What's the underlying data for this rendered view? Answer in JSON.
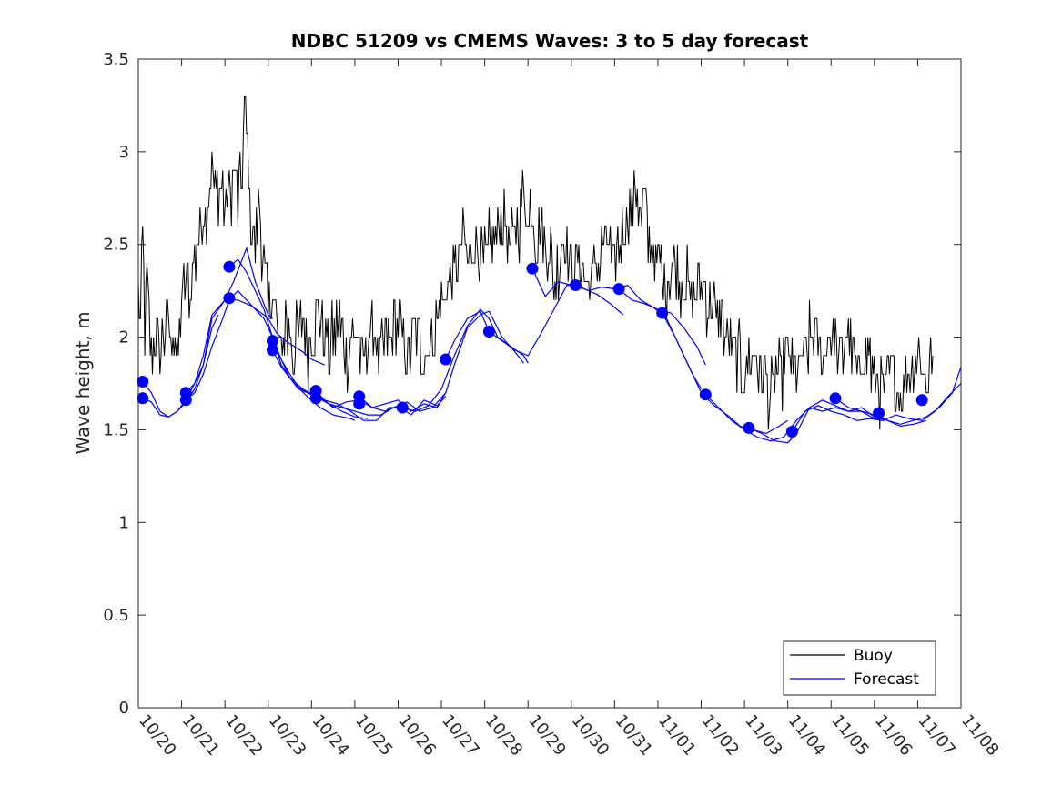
{
  "chart_data": {
    "type": "line",
    "title": "NDBC 51209 vs CMEMS Waves: 3 to 5 day forecast",
    "xlabel": "",
    "ylabel": "Wave height, m",
    "xlim": [
      0,
      19
    ],
    "ylim": [
      0,
      3.5
    ],
    "yticks": [
      0,
      0.5,
      1,
      1.5,
      2,
      2.5,
      3,
      3.5
    ],
    "ytick_labels": [
      "0",
      "0.5",
      "1",
      "1.5",
      "2",
      "2.5",
      "3",
      "3.5"
    ],
    "xticks": [
      0,
      1,
      2,
      3,
      4,
      5,
      6,
      7,
      8,
      9,
      10,
      11,
      12,
      13,
      14,
      15,
      16,
      17,
      18,
      19
    ],
    "xtick_labels": [
      "10/20",
      "10/21",
      "10/22",
      "10/23",
      "10/24",
      "10/25",
      "10/26",
      "10/27",
      "10/28",
      "10/29",
      "10/30",
      "10/31",
      "11/01",
      "11/02",
      "11/03",
      "11/04",
      "11/05",
      "11/06",
      "11/07",
      "11/08"
    ],
    "legend": {
      "position": "bottom-right",
      "entries": [
        {
          "label": "Buoy",
          "color": "#000000"
        },
        {
          "label": "Forecast",
          "color": "#0000ff"
        }
      ]
    },
    "colors": {
      "buoy": "#000000",
      "forecast": "#0000ff"
    },
    "series": [
      {
        "name": "Buoy",
        "x": [
          0,
          0.05,
          0.1,
          0.15,
          0.2,
          0.3,
          0.4,
          0.5,
          0.6,
          0.7,
          0.75,
          0.8,
          0.9,
          1.0,
          1.1,
          1.2,
          1.3,
          1.4,
          1.5,
          1.55,
          1.6,
          1.7,
          1.8,
          1.9,
          2.0,
          2.1,
          2.2,
          2.3,
          2.35,
          2.4,
          2.45,
          2.5,
          2.6,
          2.7,
          2.8,
          2.9,
          3.0,
          3.1,
          3.2,
          3.3,
          3.4,
          3.5,
          3.6,
          3.7,
          3.8,
          3.9,
          4.0,
          4.2,
          4.4,
          4.5,
          4.6,
          4.8,
          5.0,
          5.2,
          5.4,
          5.6,
          5.8,
          6.0,
          6.2,
          6.4,
          6.6,
          6.8,
          7.0,
          7.2,
          7.4,
          7.5,
          7.6,
          7.8,
          8.0,
          8.2,
          8.4,
          8.6,
          8.8,
          8.9,
          9.0,
          9.1,
          9.2,
          9.3,
          9.4,
          9.5,
          9.6,
          9.8,
          10.0,
          10.2,
          10.4,
          10.6,
          10.8,
          11.0,
          11.2,
          11.4,
          11.5,
          11.6,
          11.7,
          11.8,
          12.0,
          12.2,
          12.4,
          12.6,
          12.8,
          13.0,
          13.2,
          13.4,
          13.6,
          13.8,
          14.0,
          14.2,
          14.4,
          14.6,
          14.8,
          15.0,
          15.2,
          15.4,
          15.6,
          15.8,
          16.0,
          16.2,
          16.4,
          16.6,
          16.8,
          17.0,
          17.2,
          17.4,
          17.6,
          17.8,
          18.0,
          18.2,
          18.35
        ],
        "y": [
          2.3,
          2.1,
          2.5,
          2.0,
          2.3,
          1.9,
          2.0,
          1.9,
          2.0,
          2.1,
          1.9,
          2.1,
          1.8,
          2.2,
          2.3,
          2.2,
          2.4,
          2.5,
          2.7,
          2.6,
          2.8,
          2.9,
          2.8,
          2.8,
          2.7,
          2.8,
          2.9,
          2.7,
          2.8,
          2.9,
          3.2,
          3.1,
          2.6,
          2.5,
          2.7,
          2.4,
          2.1,
          2.3,
          2.0,
          1.9,
          2.1,
          2.0,
          1.9,
          2.0,
          2.1,
          1.9,
          2.0,
          2.1,
          1.9,
          2.0,
          2.1,
          1.9,
          2.0,
          1.9,
          2.0,
          1.9,
          2.0,
          2.1,
          1.9,
          2.0,
          1.9,
          2.0,
          2.2,
          2.3,
          2.4,
          2.5,
          2.4,
          2.5,
          2.4,
          2.5,
          2.6,
          2.5,
          2.6,
          2.8,
          2.6,
          2.7,
          2.5,
          2.6,
          2.4,
          2.5,
          2.3,
          2.5,
          2.4,
          2.4,
          2.3,
          2.4,
          2.5,
          2.4,
          2.6,
          2.7,
          2.8,
          2.6,
          2.7,
          2.5,
          2.4,
          2.3,
          2.4,
          2.3,
          2.2,
          2.3,
          2.2,
          2.1,
          2.0,
          1.9,
          1.8,
          1.9,
          1.8,
          1.7,
          1.8,
          1.9,
          1.8,
          1.9,
          2.0,
          1.9,
          2.0,
          1.9,
          2.0,
          1.8,
          1.9,
          1.8,
          1.7,
          1.8,
          1.7,
          1.8,
          1.9,
          1.8,
          1.9
        ]
      },
      {
        "name": "Forecast",
        "segments": [
          {
            "x": [
              0.1,
              0.3,
              0.5,
              0.7,
              0.9,
              1.1,
              1.3,
              1.5,
              1.7,
              2.0,
              2.2,
              2.5,
              2.7,
              3.0,
              3.1
            ],
            "y": [
              1.76,
              1.7,
              1.6,
              1.57,
              1.6,
              1.65,
              1.72,
              1.85,
              2.1,
              2.2,
              2.3,
              2.48,
              2.3,
              2.12,
              2.1
            ]
          },
          {
            "x": [
              0.1,
              0.3,
              0.5,
              0.7,
              0.9,
              1.1,
              1.3,
              1.5,
              1.7,
              1.85
            ],
            "y": [
              1.67,
              1.65,
              1.58,
              1.57,
              1.6,
              1.66,
              1.75,
              1.85,
              2.05,
              2.12
            ]
          },
          {
            "x": [
              1.1,
              1.3,
              1.5,
              1.7,
              2.0,
              2.3,
              2.6,
              2.9,
              3.0,
              3.2,
              3.4,
              3.6,
              3.8,
              4.0,
              4.3
            ],
            "y": [
              1.7,
              1.75,
              1.9,
              2.12,
              2.2,
              2.2,
              2.17,
              2.12,
              2.1,
              2.02,
              1.98,
              1.95,
              1.92,
              1.88,
              1.85
            ]
          },
          {
            "x": [
              1.1,
              1.3,
              1.5,
              1.7,
              1.95,
              2.1,
              2.3,
              2.5,
              2.7,
              2.9,
              3.1,
              3.3,
              3.6,
              3.9,
              4.2,
              4.5,
              4.9,
              5.0
            ],
            "y": [
              1.66,
              1.7,
              1.8,
              1.95,
              2.1,
              2.2,
              2.25,
              2.2,
              2.15,
              2.1,
              2.0,
              1.85,
              1.75,
              1.68,
              1.62,
              1.58,
              1.56,
              1.55
            ]
          },
          {
            "x": [
              2.1,
              2.3,
              2.5,
              2.7,
              2.9,
              3.1,
              3.3,
              3.5,
              3.8,
              4.1,
              4.4,
              4.7,
              5.0,
              5.3
            ],
            "y": [
              2.38,
              2.42,
              2.35,
              2.25,
              2.15,
              2.0,
              1.88,
              1.78,
              1.72,
              1.68,
              1.64,
              1.6,
              1.57,
              1.56
            ]
          },
          {
            "x": [
              3.1,
              3.3,
              3.5,
              3.7,
              3.9,
              4.1,
              4.3,
              4.6,
              4.9,
              5.2,
              5.5,
              5.8,
              6.1
            ],
            "y": [
              1.98,
              1.88,
              1.8,
              1.73,
              1.7,
              1.68,
              1.66,
              1.64,
              1.6,
              1.55,
              1.55,
              1.62,
              1.62
            ]
          },
          {
            "x": [
              3.1,
              3.3,
              3.5,
              3.7,
              3.9,
              4.1,
              4.4,
              4.7,
              5.0,
              5.3,
              5.6,
              5.9,
              6.2,
              6.5,
              6.8,
              7.1
            ],
            "y": [
              1.93,
              1.84,
              1.78,
              1.72,
              1.7,
              1.68,
              1.64,
              1.62,
              1.6,
              1.58,
              1.58,
              1.62,
              1.65,
              1.6,
              1.62,
              1.7
            ]
          },
          {
            "x": [
              4.1,
              4.3,
              4.5,
              4.8,
              5.1,
              5.4,
              5.7,
              6.0,
              6.3,
              6.6,
              6.9,
              7.1
            ],
            "y": [
              1.71,
              1.66,
              1.62,
              1.65,
              1.66,
              1.62,
              1.6,
              1.63,
              1.58,
              1.66,
              1.63,
              1.68
            ]
          },
          {
            "x": [
              5.1,
              5.4,
              5.7,
              6.0,
              6.3,
              6.6,
              6.9,
              7.1,
              7.3,
              7.6,
              7.9,
              8.1,
              8.4,
              8.7,
              8.9
            ],
            "y": [
              1.68,
              1.62,
              1.64,
              1.66,
              1.6,
              1.64,
              1.62,
              1.7,
              1.85,
              2.05,
              2.12,
              2.14,
              2.0,
              1.92,
              1.86
            ]
          },
          {
            "x": [
              6.1,
              6.4,
              6.7,
              7.0,
              7.3,
              7.6,
              7.9,
              8.1,
              8.3,
              8.6,
              8.9,
              9.0
            ],
            "y": [
              1.62,
              1.6,
              1.63,
              1.72,
              1.9,
              2.06,
              2.15,
              2.1,
              2.0,
              1.95,
              1.9,
              1.86
            ]
          },
          {
            "x": [
              7.1,
              7.3,
              7.6,
              7.9,
              8.1,
              8.4,
              8.7,
              9.0,
              9.3,
              9.6,
              9.9,
              10.1
            ],
            "y": [
              1.88,
              1.98,
              2.1,
              2.14,
              2.03,
              1.98,
              1.93,
              1.9,
              2.02,
              2.15,
              2.28,
              2.28
            ]
          },
          {
            "x": [
              9.1,
              9.4,
              9.7,
              10.0,
              10.3,
              10.6,
              10.9,
              11.2
            ],
            "y": [
              2.37,
              2.22,
              2.3,
              2.28,
              2.26,
              2.23,
              2.18,
              2.12
            ]
          },
          {
            "x": [
              10.1,
              10.4,
              10.7,
              11.0,
              11.3,
              11.6,
              11.9,
              12.2,
              12.5,
              12.8,
              13.0
            ],
            "y": [
              2.28,
              2.25,
              2.27,
              2.26,
              2.28,
              2.2,
              2.16,
              2.1,
              1.95,
              1.8,
              1.72
            ]
          },
          {
            "x": [
              11.1,
              11.4,
              11.7,
              12.0,
              12.3,
              12.6,
              12.9,
              13.1
            ],
            "y": [
              2.26,
              2.2,
              2.18,
              2.15,
              2.13,
              2.05,
              1.95,
              1.85
            ]
          },
          {
            "x": [
              12.1,
              12.4,
              12.7,
              13.0,
              13.3,
              13.6,
              13.9,
              14.2,
              14.5,
              14.8,
              15.0
            ],
            "y": [
              2.13,
              2.0,
              1.85,
              1.7,
              1.63,
              1.58,
              1.52,
              1.5,
              1.48,
              1.52,
              1.55
            ]
          },
          {
            "x": [
              13.1,
              13.4,
              13.7,
              14.0,
              14.3,
              14.6,
              14.9,
              15.2,
              15.5,
              15.8,
              16.1,
              16.4,
              16.7,
              17.0,
              17.2
            ],
            "y": [
              1.69,
              1.62,
              1.55,
              1.5,
              1.46,
              1.44,
              1.46,
              1.55,
              1.62,
              1.6,
              1.62,
              1.6,
              1.6,
              1.56,
              1.55
            ]
          },
          {
            "x": [
              14.1,
              14.4,
              14.7,
              15.0,
              15.2,
              15.5,
              15.8,
              16.1,
              16.4,
              16.7,
              17.0,
              17.3,
              17.6,
              17.9,
              18.2
            ],
            "y": [
              1.51,
              1.48,
              1.44,
              1.43,
              1.48,
              1.62,
              1.66,
              1.63,
              1.6,
              1.62,
              1.57,
              1.55,
              1.52,
              1.53,
              1.55
            ]
          },
          {
            "x": [
              15.1,
              15.4,
              15.7,
              16.0,
              16.3,
              16.6,
              16.9,
              17.2,
              17.5,
              17.8,
              18.1,
              18.4,
              18.7,
              19.0
            ],
            "y": [
              1.49,
              1.6,
              1.63,
              1.6,
              1.58,
              1.55,
              1.56,
              1.55,
              1.58,
              1.56,
              1.55,
              1.6,
              1.68,
              1.75
            ]
          },
          {
            "x": [
              16.1,
              16.4,
              16.7,
              17.0,
              17.3,
              17.6,
              17.9,
              18.2,
              18.5,
              18.8,
              19.0
            ],
            "y": [
              1.67,
              1.62,
              1.6,
              1.58,
              1.55,
              1.53,
              1.55,
              1.57,
              1.62,
              1.7,
              1.84
            ]
          }
        ],
        "markers": {
          "x": [
            0.1,
            0.1,
            1.1,
            1.1,
            2.1,
            2.1,
            3.1,
            3.1,
            4.1,
            4.1,
            5.1,
            5.1,
            6.1,
            7.1,
            8.1,
            9.1,
            10.1,
            11.1,
            12.1,
            13.1,
            14.1,
            15.1,
            16.1,
            17.1,
            18.1
          ],
          "y": [
            1.76,
            1.67,
            1.7,
            1.66,
            2.38,
            2.21,
            1.98,
            1.93,
            1.71,
            1.67,
            1.68,
            1.64,
            1.62,
            1.88,
            2.03,
            2.37,
            2.28,
            2.26,
            2.13,
            1.69,
            1.51,
            1.49,
            1.67,
            1.59,
            1.66
          ]
        }
      }
    ]
  }
}
